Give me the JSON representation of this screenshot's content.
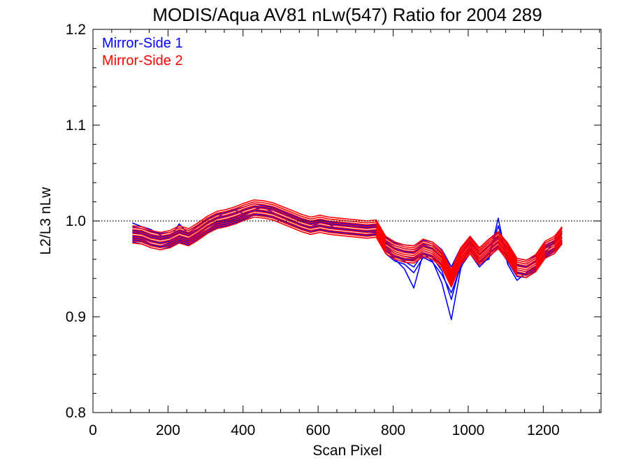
{
  "chart_data": {
    "type": "line",
    "title": "MODIS/Aqua AV81 nLw(547) Ratio for 2004 289",
    "xlabel": "Scan Pixel",
    "ylabel": "L2/L3 nLw",
    "xlim": [
      0,
      1354
    ],
    "ylim": [
      0.8,
      1.2
    ],
    "xticks": [
      0,
      200,
      400,
      600,
      800,
      1000,
      1200
    ],
    "xtick_labels": [
      "0",
      "200",
      "400",
      "600",
      "800",
      "1000",
      "1200"
    ],
    "yticks": [
      0.8,
      0.9,
      1.0,
      1.1,
      1.2
    ],
    "ytick_labels": [
      "0.8",
      "0.9",
      "1.0",
      "1.1",
      "1.2"
    ],
    "reference_line": {
      "y": 1.0,
      "style": "dotted"
    },
    "legend": {
      "placement": "top-left"
    },
    "x": [
      105,
      130,
      155,
      180,
      205,
      230,
      255,
      280,
      305,
      330,
      355,
      380,
      405,
      430,
      455,
      480,
      505,
      530,
      555,
      580,
      605,
      630,
      655,
      680,
      705,
      730,
      755,
      780,
      805,
      830,
      855,
      880,
      905,
      930,
      955,
      980,
      1005,
      1030,
      1055,
      1080,
      1105,
      1130,
      1155,
      1180,
      1205,
      1230,
      1250
    ],
    "base": [
      0.986,
      0.985,
      0.981,
      0.979,
      0.981,
      0.986,
      0.983,
      0.989,
      0.996,
      1.001,
      1.003,
      1.006,
      1.01,
      1.013,
      1.012,
      1.01,
      1.006,
      1.002,
      0.998,
      0.995,
      0.997,
      0.995,
      0.994,
      0.993,
      0.992,
      0.991,
      0.992,
      0.975,
      0.969,
      0.966,
      0.965,
      0.972,
      0.969,
      0.96,
      0.94,
      0.963,
      0.975,
      0.963,
      0.972,
      0.98,
      0.968,
      0.952,
      0.95,
      0.956,
      0.97,
      0.975,
      0.985
    ],
    "series": [
      {
        "name": "Mirror-Side 1",
        "color": "#0000ff",
        "lines": [
          [
            0.998,
            0.994,
            0.991,
            0.985,
            0.982,
            0.997,
            0.986,
            0.991,
            0.998,
            1.003,
            1.01,
            1.011,
            1.007,
            1.012,
            1.014,
            1.009,
            1.003,
            1.001,
            0.996,
            0.994,
            0.998,
            0.996,
            0.991,
            0.99,
            0.989,
            0.988,
            0.988,
            0.97,
            0.96,
            0.95,
            0.93,
            0.966,
            0.958,
            0.935,
            0.897,
            0.95,
            0.975,
            0.957,
            0.96,
            1.003,
            0.955,
            0.938,
            0.946,
            0.952,
            0.967,
            0.978,
            0.983
          ],
          [
            0.982,
            0.981,
            0.976,
            0.974,
            0.977,
            0.982,
            0.979,
            0.985,
            0.991,
            0.997,
            0.999,
            1.002,
            1.006,
            1.011,
            1.01,
            1.008,
            1.004,
            1.0,
            0.996,
            0.993,
            0.995,
            0.993,
            0.992,
            0.991,
            0.99,
            0.989,
            0.99,
            0.972,
            0.963,
            0.958,
            0.952,
            0.966,
            0.962,
            0.948,
            0.918,
            0.955,
            0.971,
            0.956,
            0.965,
            0.995,
            0.961,
            0.945,
            0.945,
            0.95,
            0.966,
            0.971,
            0.98
          ],
          [
            0.99,
            0.989,
            0.985,
            0.983,
            0.985,
            0.99,
            0.987,
            0.992,
            0.999,
            1.004,
            1.006,
            1.009,
            1.012,
            1.015,
            1.014,
            1.012,
            1.008,
            1.004,
            1.0,
            0.997,
            0.999,
            0.997,
            0.996,
            0.995,
            0.994,
            0.993,
            0.994,
            0.979,
            0.974,
            0.971,
            0.97,
            0.976,
            0.974,
            0.966,
            0.948,
            0.968,
            0.979,
            0.968,
            0.977,
            0.984,
            0.973,
            0.957,
            0.955,
            0.961,
            0.974,
            0.979,
            0.989
          ],
          [
            0.978,
            0.976,
            0.972,
            0.97,
            0.973,
            0.978,
            0.975,
            0.981,
            0.988,
            0.993,
            0.995,
            0.998,
            1.002,
            1.006,
            1.005,
            1.003,
            0.999,
            0.995,
            0.992,
            0.989,
            0.991,
            0.989,
            0.988,
            0.987,
            0.986,
            0.985,
            0.986,
            0.966,
            0.958,
            0.955,
            0.946,
            0.962,
            0.957,
            0.944,
            0.925,
            0.952,
            0.966,
            0.952,
            0.962,
            0.972,
            0.958,
            0.942,
            0.941,
            0.948,
            0.962,
            0.968,
            0.977
          ],
          [
            0.994,
            0.992,
            0.989,
            0.987,
            0.988,
            0.993,
            0.99,
            0.995,
            1.002,
            1.007,
            1.009,
            1.012,
            1.015,
            1.018,
            1.016,
            1.014,
            1.01,
            1.006,
            1.002,
            0.999,
            1.001,
            0.999,
            0.998,
            0.997,
            0.996,
            0.995,
            0.996,
            0.983,
            0.977,
            0.975,
            0.974,
            0.98,
            0.978,
            0.97,
            0.952,
            0.972,
            0.983,
            0.972,
            0.981,
            0.988,
            0.977,
            0.961,
            0.959,
            0.964,
            0.977,
            0.982,
            0.993
          ],
          [
            0.984,
            0.983,
            0.979,
            0.977,
            0.979,
            0.984,
            0.981,
            0.987,
            0.994,
            0.999,
            1.001,
            1.004,
            1.008,
            1.011,
            1.01,
            1.008,
            1.004,
            1.0,
            0.996,
            0.993,
            0.995,
            0.993,
            0.992,
            0.991,
            0.99,
            0.989,
            0.99,
            0.973,
            0.966,
            0.963,
            0.961,
            0.969,
            0.966,
            0.957,
            0.937,
            0.96,
            0.972,
            0.96,
            0.969,
            0.978,
            0.965,
            0.949,
            0.947,
            0.953,
            0.967,
            0.972,
            0.982
          ],
          [
            0.988,
            0.987,
            0.983,
            0.981,
            0.983,
            0.988,
            0.985,
            0.991,
            0.998,
            1.003,
            1.005,
            1.008,
            1.012,
            1.015,
            1.014,
            1.012,
            1.008,
            1.004,
            1.0,
            0.997,
            0.999,
            0.997,
            0.996,
            0.995,
            0.994,
            0.993,
            0.994,
            0.977,
            0.971,
            0.968,
            0.967,
            0.974,
            0.971,
            0.962,
            0.942,
            0.965,
            0.977,
            0.965,
            0.974,
            0.982,
            0.97,
            0.954,
            0.952,
            0.958,
            0.972,
            0.977,
            0.987
          ],
          [
            0.98,
            0.979,
            0.975,
            0.973,
            0.975,
            0.98,
            0.977,
            0.983,
            0.99,
            0.995,
            0.997,
            1.0,
            1.004,
            1.007,
            1.006,
            1.004,
            1.0,
            0.996,
            0.992,
            0.989,
            0.991,
            0.989,
            0.988,
            0.987,
            0.986,
            0.985,
            0.986,
            0.969,
            0.963,
            0.96,
            0.959,
            0.966,
            0.963,
            0.954,
            0.934,
            0.957,
            0.969,
            0.957,
            0.966,
            0.974,
            0.962,
            0.946,
            0.944,
            0.95,
            0.964,
            0.969,
            0.979
          ]
        ]
      },
      {
        "name": "Mirror-Side 2",
        "color": "#ff0000",
        "lines": [
          [
            0.987,
            0.986,
            0.982,
            0.98,
            0.982,
            0.987,
            0.984,
            0.99,
            0.997,
            1.002,
            1.004,
            1.007,
            1.011,
            1.014,
            1.013,
            1.011,
            1.007,
            1.003,
            0.999,
            0.996,
            0.998,
            0.996,
            0.995,
            0.994,
            0.993,
            0.992,
            0.993,
            0.976,
            0.97,
            0.967,
            0.966,
            0.973,
            0.97,
            0.961,
            0.941,
            0.964,
            0.976,
            0.964,
            0.973,
            0.981,
            0.969,
            0.953,
            0.951,
            0.957,
            0.971,
            0.976,
            0.986
          ],
          [
            0.983,
            0.982,
            0.978,
            0.976,
            0.978,
            0.983,
            0.98,
            0.986,
            0.993,
            0.998,
            1.0,
            1.003,
            1.007,
            1.01,
            1.009,
            1.007,
            1.003,
            0.999,
            0.995,
            0.992,
            0.994,
            0.992,
            0.991,
            0.99,
            0.989,
            0.988,
            0.989,
            0.972,
            0.966,
            0.963,
            0.962,
            0.969,
            0.966,
            0.957,
            0.937,
            0.96,
            0.972,
            0.96,
            0.969,
            0.977,
            0.965,
            0.949,
            0.947,
            0.953,
            0.967,
            0.972,
            0.982
          ],
          [
            0.991,
            0.99,
            0.986,
            0.984,
            0.986,
            0.991,
            0.988,
            0.994,
            1.001,
            1.006,
            1.008,
            1.011,
            1.015,
            1.018,
            1.017,
            1.015,
            1.011,
            1.007,
            1.003,
            1.0,
            1.002,
            1.0,
            0.999,
            0.998,
            0.997,
            0.996,
            0.997,
            0.98,
            0.974,
            0.971,
            0.97,
            0.977,
            0.974,
            0.965,
            0.945,
            0.968,
            0.98,
            0.968,
            0.977,
            0.985,
            0.973,
            0.957,
            0.955,
            0.961,
            0.975,
            0.98,
            0.99
          ],
          [
            0.979,
            0.978,
            0.974,
            0.972,
            0.974,
            0.979,
            0.976,
            0.982,
            0.989,
            0.994,
            0.996,
            0.999,
            1.003,
            1.006,
            1.005,
            1.003,
            0.999,
            0.995,
            0.991,
            0.988,
            0.99,
            0.988,
            0.987,
            0.986,
            0.985,
            0.984,
            0.985,
            0.968,
            0.962,
            0.959,
            0.958,
            0.965,
            0.962,
            0.953,
            0.933,
            0.956,
            0.968,
            0.956,
            0.965,
            0.973,
            0.961,
            0.945,
            0.943,
            0.949,
            0.963,
            0.968,
            0.978
          ],
          [
            0.985,
            0.984,
            0.98,
            0.978,
            0.98,
            0.985,
            0.982,
            0.988,
            0.995,
            1.0,
            1.002,
            1.005,
            1.009,
            1.012,
            1.011,
            1.009,
            1.005,
            1.001,
            0.997,
            0.994,
            0.996,
            0.994,
            0.993,
            0.992,
            0.991,
            0.99,
            0.991,
            0.974,
            0.968,
            0.965,
            0.964,
            0.971,
            0.968,
            0.959,
            0.939,
            0.962,
            0.974,
            0.962,
            0.971,
            0.979,
            0.967,
            0.951,
            0.949,
            0.955,
            0.969,
            0.974,
            0.984
          ],
          [
            0.989,
            0.988,
            0.984,
            0.982,
            0.984,
            0.989,
            0.986,
            0.992,
            0.999,
            1.004,
            1.006,
            1.009,
            1.013,
            1.016,
            1.015,
            1.013,
            1.009,
            1.005,
            1.001,
            0.998,
            1.0,
            0.998,
            0.997,
            0.996,
            0.995,
            0.994,
            0.995,
            0.978,
            0.972,
            0.969,
            0.968,
            0.975,
            0.972,
            0.963,
            0.943,
            0.966,
            0.978,
            0.966,
            0.975,
            0.983,
            0.971,
            0.955,
            0.953,
            0.959,
            0.973,
            0.978,
            0.988
          ],
          [
            0.981,
            0.98,
            0.976,
            0.974,
            0.976,
            0.981,
            0.978,
            0.984,
            0.991,
            0.996,
            0.998,
            1.001,
            1.005,
            1.008,
            1.007,
            1.005,
            1.001,
            0.997,
            0.993,
            0.99,
            0.992,
            0.99,
            0.989,
            0.988,
            0.987,
            0.986,
            0.987,
            0.97,
            0.964,
            0.961,
            0.96,
            0.967,
            0.964,
            0.955,
            0.935,
            0.958,
            0.97,
            0.958,
            0.967,
            0.975,
            0.963,
            0.947,
            0.945,
            0.951,
            0.965,
            0.97,
            0.98
          ],
          [
            0.993,
            0.992,
            0.988,
            0.986,
            0.988,
            0.993,
            0.99,
            0.996,
            1.003,
            1.008,
            1.01,
            1.013,
            1.017,
            1.02,
            1.019,
            1.017,
            1.013,
            1.009,
            1.005,
            1.002,
            1.004,
            1.002,
            1.001,
            1.0,
            0.999,
            0.998,
            0.999,
            0.982,
            0.976,
            0.973,
            0.972,
            0.979,
            0.976,
            0.967,
            0.947,
            0.97,
            0.982,
            0.97,
            0.979,
            0.987,
            0.975,
            0.959,
            0.957,
            0.963,
            0.977,
            0.982,
            0.992
          ],
          [
            0.977,
            0.976,
            0.972,
            0.97,
            0.972,
            0.977,
            0.974,
            0.98,
            0.987,
            0.992,
            0.994,
            0.997,
            1.001,
            1.004,
            1.003,
            1.001,
            0.997,
            0.993,
            0.989,
            0.986,
            0.988,
            0.986,
            0.985,
            0.984,
            0.983,
            0.982,
            0.983,
            0.966,
            0.96,
            0.957,
            0.956,
            0.963,
            0.96,
            0.951,
            0.931,
            0.954,
            0.966,
            0.954,
            0.963,
            0.971,
            0.959,
            0.943,
            0.941,
            0.947,
            0.961,
            0.966,
            0.976
          ],
          [
            0.995,
            0.994,
            0.99,
            0.988,
            0.99,
            0.995,
            0.992,
            0.998,
            1.005,
            1.01,
            1.012,
            1.015,
            1.019,
            1.022,
            1.021,
            1.019,
            1.015,
            1.011,
            1.007,
            1.004,
            1.006,
            1.004,
            1.003,
            1.002,
            1.001,
            1.0,
            1.001,
            0.984,
            0.978,
            0.975,
            0.974,
            0.981,
            0.978,
            0.969,
            0.949,
            0.972,
            0.984,
            0.972,
            0.981,
            0.989,
            0.977,
            0.961,
            0.959,
            0.965,
            0.979,
            0.984,
            0.994
          ]
        ]
      }
    ]
  }
}
